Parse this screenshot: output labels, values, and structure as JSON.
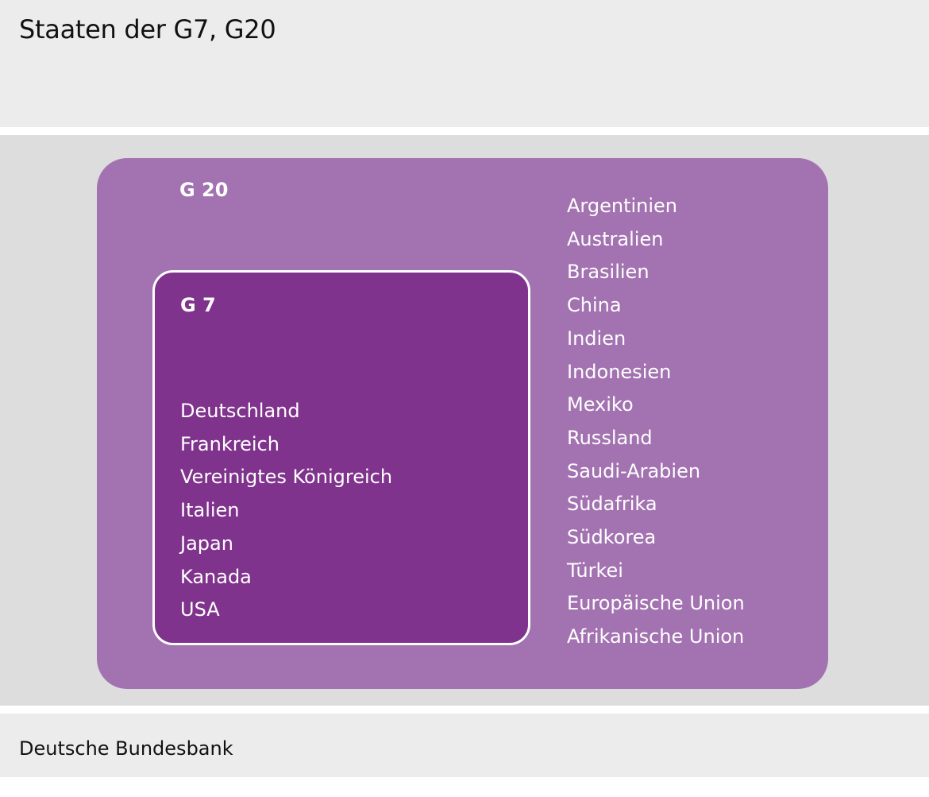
{
  "title": "Staaten der G7, G20",
  "source": "Deutsche Bundesbank",
  "colors": {
    "header_bg": "#ececec",
    "main_bg": "#dcdddc",
    "g20_fill": "#a373b1",
    "g7_fill": "#80338c",
    "text_light": "#ffffff"
  },
  "g20": {
    "label": "G 20",
    "members": [
      "Argentinien",
      "Australien",
      "Brasilien",
      "China",
      "Indien",
      "Indonesien",
      "Mexiko",
      "Russland",
      "Saudi-Arabien",
      "Südafrika",
      "Südkorea",
      "Türkei",
      "Europäische Union",
      "Afrikanische Union"
    ]
  },
  "g7": {
    "label": "G 7",
    "members": [
      "Deutschland",
      "Frankreich",
      "Vereinigtes Königreich",
      "Italien",
      "Japan",
      "Kanada",
      "USA"
    ]
  }
}
